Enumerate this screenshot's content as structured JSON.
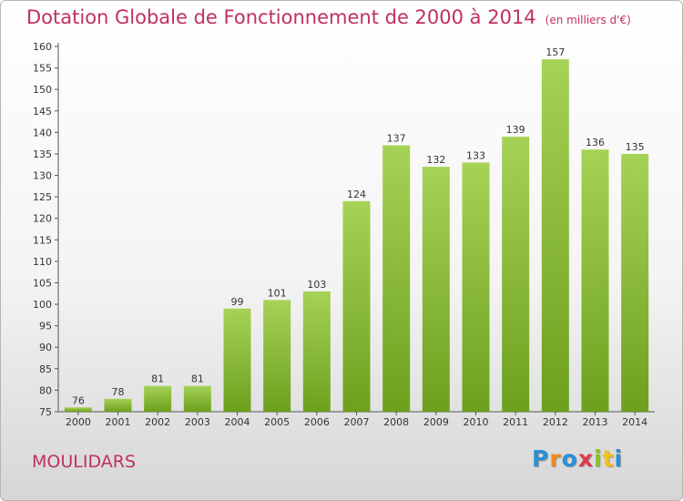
{
  "chart_data": {
    "type": "bar",
    "title": "Dotation Globale de Fonctionnement de 2000 à 2014",
    "unit": "(en milliers d'€)",
    "categories": [
      "2000",
      "2001",
      "2002",
      "2003",
      "2004",
      "2005",
      "2006",
      "2007",
      "2008",
      "2009",
      "2010",
      "2011",
      "2012",
      "2013",
      "2014"
    ],
    "values": [
      76,
      78,
      81,
      81,
      99,
      101,
      103,
      124,
      137,
      132,
      133,
      139,
      157,
      136,
      135
    ],
    "ylim": [
      75,
      160
    ],
    "yticks": [
      75,
      80,
      85,
      90,
      95,
      100,
      105,
      110,
      115,
      120,
      125,
      130,
      135,
      140,
      145,
      150,
      155,
      160
    ],
    "xlabel": "",
    "ylabel": "",
    "grid": false,
    "legend": "none"
  },
  "commune": "MOULIDARS",
  "brand": {
    "letters": [
      "P",
      "r",
      "o",
      "x",
      "i",
      "t",
      "i"
    ]
  },
  "colors": {
    "title": "#c0305e",
    "bar_light": "#a6d257",
    "bar_dark": "#6da01d"
  }
}
